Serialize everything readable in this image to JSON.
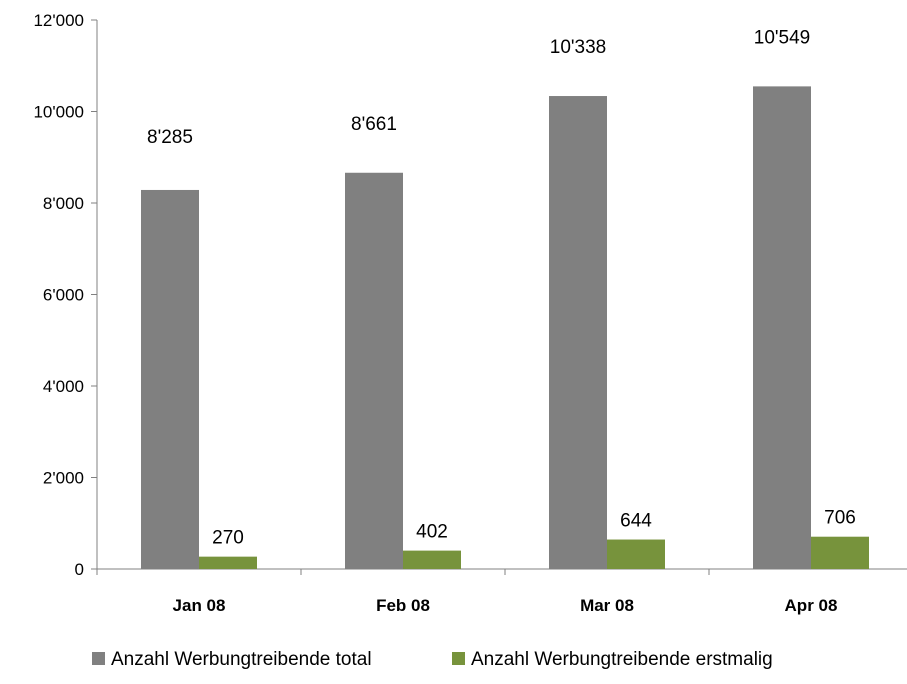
{
  "chart_data": {
    "type": "bar",
    "categories": [
      "Jan 08",
      "Feb 08",
      "Mar 08",
      "Apr 08"
    ],
    "series": [
      {
        "name": "Anzahl Werbungtreibende total",
        "values": [
          8285,
          8661,
          10338,
          10549
        ],
        "labels": [
          "8'285",
          "8'661",
          "10'338",
          "10'549"
        ],
        "color": "#808080"
      },
      {
        "name": "Anzahl Werbungtreibende erstmalig",
        "values": [
          270,
          402,
          644,
          706
        ],
        "labels": [
          "270",
          "402",
          "644",
          "706"
        ],
        "color": "#77933c"
      }
    ],
    "ylim": [
      0,
      12000
    ],
    "yticks": [
      0,
      2000,
      4000,
      6000,
      8000,
      10000,
      12000
    ],
    "ytick_labels": [
      "0",
      "2'000",
      "4'000",
      "6'000",
      "8'000",
      "10'000",
      "12'000"
    ],
    "grid": false,
    "legend_position": "bottom",
    "axis_color": "#808080"
  }
}
